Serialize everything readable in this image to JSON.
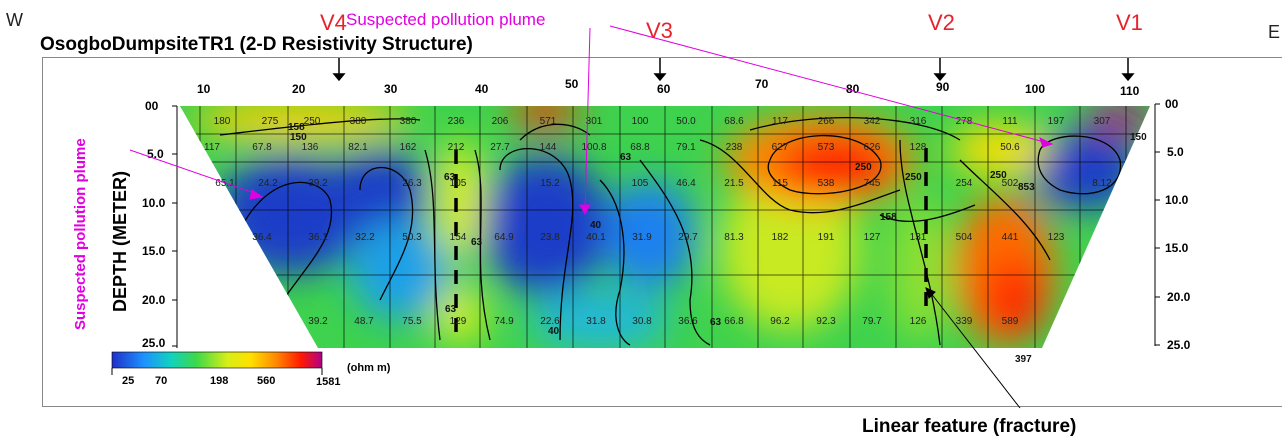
{
  "title": "OsogboDumpsiteTR1 (2-D Resistivity Structure)",
  "direction_west": "W",
  "direction_east": "E",
  "vlf_stations": [
    {
      "label": "V4",
      "x_pos": 24
    },
    {
      "label": "V3",
      "x_pos": 59
    },
    {
      "label": "V2",
      "x_pos": 89
    },
    {
      "label": "V1",
      "x_pos": 109
    }
  ],
  "annotations": {
    "plume_top": "Suspected pollution plume",
    "plume_side": "Suspected pollution plume",
    "fracture": "Linear feature (fracture)"
  },
  "axes": {
    "ylabel": "DEPTH (METER)",
    "x_ticks": [
      "10",
      "20",
      "30",
      "40",
      "50",
      "60",
      "70",
      "80",
      "90",
      "100",
      "110"
    ],
    "y_ticks_left": [
      "00",
      "5.0",
      "10.0",
      "15.0",
      "20.0",
      "25.0"
    ],
    "y_ticks_right": [
      "00",
      "5.0",
      "10.0",
      "15.0",
      "20.0",
      "25.0"
    ]
  },
  "colorbar": {
    "unit": "(ohm m)",
    "ticks": [
      "25",
      "70",
      "198",
      "560",
      "1581"
    ],
    "colors": [
      "#1f2fc8",
      "#1e90ff",
      "#11d2c0",
      "#3cd84a",
      "#d8ee18",
      "#ffe000",
      "#ff8a00",
      "#ff1a00",
      "#b0008a"
    ]
  },
  "cell_values": [
    [
      "180",
      "275",
      "250",
      "380",
      "380",
      "236",
      "206",
      "571",
      "301",
      "100",
      "50.0",
      "68.6",
      "117",
      "266",
      "342",
      "316",
      "278",
      "111",
      "197",
      "307"
    ],
    [
      "117",
      "67.8",
      "136",
      "82.1",
      "162",
      "212",
      "27.7",
      "144",
      "100.8",
      "68.8",
      "79.1",
      "238",
      "627",
      "573",
      "626",
      "128",
      "",
      "50.6",
      "",
      ""
    ],
    [
      "65.1",
      "24.2",
      "39.2",
      "",
      "26.3",
      "105",
      "",
      "15.2",
      "",
      "105",
      "46.4",
      "21.5",
      "115",
      "538",
      "745",
      "",
      "254",
      "502",
      "",
      "8.12"
    ],
    [
      "36.4",
      "36.1",
      "32.2",
      "50.3",
      "154",
      "64.9",
      "23.8",
      "40.1",
      "31.9",
      "29.7",
      "81.3",
      "182",
      "191",
      "127",
      "131",
      "504",
      "441",
      "123"
    ],
    [
      "39.2",
      "48.7",
      "75.5",
      "129",
      "74.9",
      "22.6",
      "31.8",
      "30.8",
      "36.6",
      "66.8",
      "96.2",
      "92.3",
      "79.7",
      "126",
      "339",
      "589"
    ]
  ],
  "contour_labels": [
    "158",
    "150",
    "63",
    "63",
    "40",
    "250",
    "158",
    "63",
    "63",
    "397",
    "40",
    "250",
    "853",
    "250",
    "63",
    "150"
  ]
}
